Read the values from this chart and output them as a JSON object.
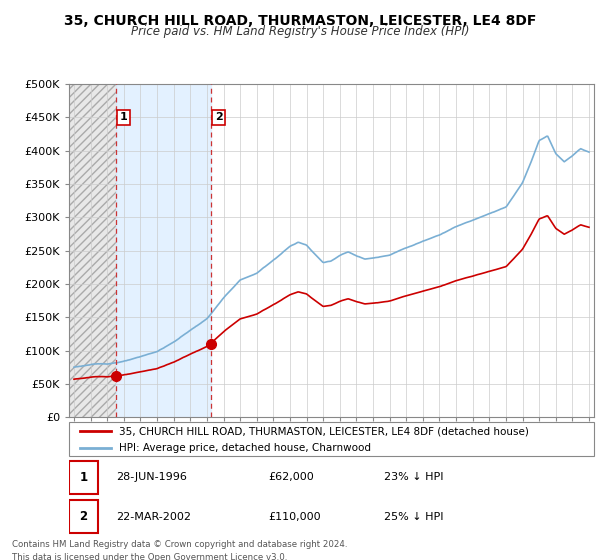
{
  "title": "35, CHURCH HILL ROAD, THURMASTON, LEICESTER, LE4 8DF",
  "subtitle": "Price paid vs. HM Land Registry's House Price Index (HPI)",
  "property_label": "35, CHURCH HILL ROAD, THURMASTON, LEICESTER, LE4 8DF (detached house)",
  "hpi_label": "HPI: Average price, detached house, Charnwood",
  "sale1_date": "28-JUN-1996",
  "sale1_price": 62000,
  "sale1_pct": "23% ↓ HPI",
  "sale1_year": 1996.5,
  "sale2_date": "22-MAR-2002",
  "sale2_price": 110000,
  "sale2_pct": "25% ↓ HPI",
  "sale2_year": 2002.22,
  "property_color": "#cc0000",
  "hpi_color": "#7aafd4",
  "vline_color": "#cc3333",
  "footnote": "Contains HM Land Registry data © Crown copyright and database right 2024.\nThis data is licensed under the Open Government Licence v3.0.",
  "ylim": [
    0,
    500000
  ],
  "yticks": [
    0,
    50000,
    100000,
    150000,
    200000,
    250000,
    300000,
    350000,
    400000,
    450000,
    500000
  ],
  "xlim_start": 1993.7,
  "xlim_end": 2025.3
}
